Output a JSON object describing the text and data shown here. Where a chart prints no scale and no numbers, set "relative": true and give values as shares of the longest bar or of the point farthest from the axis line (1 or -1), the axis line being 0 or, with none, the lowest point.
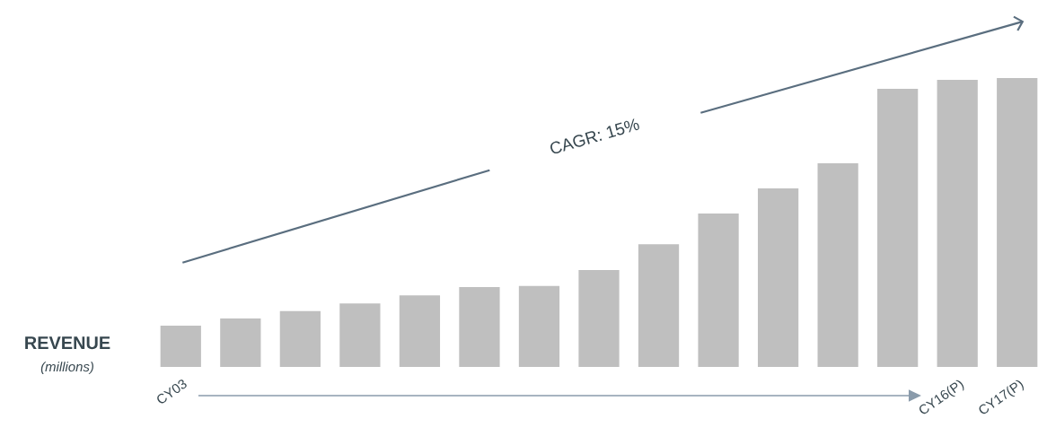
{
  "chart_data": {
    "type": "bar",
    "relative": true,
    "categories": [
      "CY03",
      null,
      null,
      null,
      null,
      null,
      null,
      null,
      null,
      null,
      null,
      null,
      null,
      "CY16(P)",
      "CY17(P)"
    ],
    "values": [
      0.143,
      0.168,
      0.193,
      0.22,
      0.248,
      0.276,
      0.28,
      0.335,
      0.425,
      0.531,
      0.618,
      0.705,
      0.963,
      0.994,
      1
    ],
    "color": "#bfbfbf",
    "ylabel": "REVENUE",
    "annotations": [
      "(millions)",
      "CAGR: 15%"
    ]
  }
}
